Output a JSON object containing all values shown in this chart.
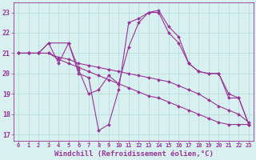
{
  "background_color": "#d8f0f0",
  "line_color": "#993399",
  "grid_color": "#b8dede",
  "xlabel": "Windchill (Refroidissement éolien,°C)",
  "xlabel_fontsize": 6.5,
  "yticks": [
    17,
    18,
    19,
    20,
    21,
    22,
    23
  ],
  "xticks": [
    0,
    1,
    2,
    3,
    4,
    5,
    6,
    7,
    8,
    9,
    10,
    11,
    12,
    13,
    14,
    15,
    16,
    17,
    18,
    19,
    20,
    21,
    22,
    23
  ],
  "xlim": [
    -0.5,
    23.5
  ],
  "ylim": [
    16.7,
    23.5
  ],
  "series": [
    {
      "x": [
        0,
        1,
        2,
        3,
        4,
        5,
        6,
        7,
        8,
        9,
        10,
        11,
        12,
        13,
        14,
        15,
        16,
        17,
        18,
        19,
        20,
        21,
        22,
        23
      ],
      "y": [
        21.0,
        21.0,
        21.0,
        21.0,
        20.8,
        20.7,
        20.5,
        20.4,
        20.3,
        20.2,
        20.1,
        20.0,
        19.9,
        19.8,
        19.7,
        19.6,
        19.4,
        19.2,
        19.0,
        18.7,
        18.4,
        18.2,
        18.0,
        17.6
      ]
    },
    {
      "x": [
        0,
        1,
        2,
        3,
        4,
        5,
        6,
        7,
        8,
        9,
        10,
        11,
        12,
        13,
        14,
        15,
        16,
        17,
        18,
        19,
        20,
        21,
        22,
        23
      ],
      "y": [
        21.0,
        21.0,
        21.0,
        21.0,
        20.7,
        20.5,
        20.3,
        20.1,
        19.9,
        19.7,
        19.5,
        19.3,
        19.1,
        18.9,
        18.8,
        18.6,
        18.4,
        18.2,
        18.0,
        17.8,
        17.6,
        17.5,
        17.5,
        17.5
      ]
    },
    {
      "x": [
        0,
        1,
        2,
        3,
        4,
        5,
        6,
        7,
        8,
        9,
        10,
        11,
        12,
        13,
        14,
        15,
        16,
        17,
        18,
        19,
        20,
        21,
        22,
        23
      ],
      "y": [
        21.0,
        21.0,
        21.0,
        21.5,
        20.5,
        21.5,
        20.2,
        19.0,
        19.2,
        19.9,
        19.5,
        21.3,
        22.5,
        23.0,
        23.1,
        22.3,
        21.8,
        20.5,
        20.1,
        20.0,
        20.0,
        19.0,
        18.8,
        17.5
      ]
    },
    {
      "x": [
        0,
        1,
        2,
        3,
        5,
        6,
        7,
        8,
        9,
        10,
        11,
        12,
        13,
        14,
        15,
        16,
        17,
        18,
        19,
        20,
        21,
        22,
        23
      ],
      "y": [
        21.0,
        21.0,
        21.0,
        21.5,
        21.5,
        20.0,
        19.8,
        17.2,
        17.5,
        19.2,
        22.5,
        22.7,
        23.0,
        23.0,
        22.0,
        21.5,
        20.5,
        20.1,
        20.0,
        20.0,
        18.8,
        18.8,
        17.5
      ]
    }
  ]
}
